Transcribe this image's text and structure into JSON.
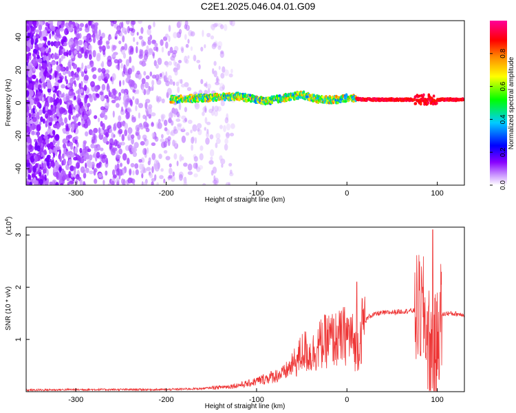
{
  "figure": {
    "title": "C2E1.2025.046.04.01.G09"
  },
  "chart_data": [
    {
      "type": "heatmap",
      "xlabel": "Height of straight line (km)",
      "ylabel": "Frequency (Hz)",
      "xlim": [
        -355,
        130
      ],
      "ylim": [
        -50,
        50
      ],
      "x_ticks": [
        -300,
        -200,
        -100,
        0,
        100
      ],
      "x_tick_labels": [
        "-300",
        "-200",
        "-100",
        "0",
        "100"
      ],
      "y_ticks": [
        -40,
        -20,
        0,
        20,
        40
      ],
      "y_tick_labels": [
        "-40",
        "-20",
        "0",
        "20",
        "40"
      ],
      "colorbar": {
        "label": "Normalized spectral amplitude",
        "range": [
          0,
          1
        ],
        "ticks": [
          0.0,
          0.2,
          0.4,
          0.6,
          0.8
        ],
        "tick_labels": [
          "0.0",
          "0.2",
          "0.4",
          "0.6",
          "0.8"
        ],
        "colors": [
          "#ffffff",
          "#cc99ff",
          "#8800ff",
          "#0000ff",
          "#00ccff",
          "#00ff00",
          "#ffff00",
          "#ff8800",
          "#ff0000",
          "#ff0099"
        ]
      },
      "ridge": {
        "description_points_x": [
          -195,
          -160,
          -120,
          -90,
          -70,
          -50,
          -30,
          -10,
          0,
          20,
          60,
          80,
          95,
          130
        ],
        "frequency_hz": [
          2,
          3,
          4,
          1,
          3,
          5,
          2,
          2,
          3,
          2,
          2,
          2,
          2,
          2
        ]
      },
      "grid": false
    },
    {
      "type": "line",
      "xlabel": "Height of straight line (km)",
      "ylabel": "SNR (10 * v/v)",
      "y_scale_label_base": "(x10",
      "y_scale_label_exp": "4",
      "y_scale_label_end": ")",
      "xlim": [
        -355,
        130
      ],
      "ylim": [
        0,
        3.15
      ],
      "x_ticks": [
        -300,
        -200,
        -100,
        0,
        100
      ],
      "x_tick_labels": [
        "-300",
        "-200",
        "-100",
        "0",
        "100"
      ],
      "y_ticks": [
        1,
        2,
        3
      ],
      "y_tick_labels": [
        "1",
        "2",
        "3"
      ],
      "series": [
        {
          "color": "#ee3333",
          "x": [
            -355,
            -300,
            -250,
            -200,
            -160,
            -130,
            -110,
            -90,
            -70,
            -55,
            -48,
            -40,
            -30,
            -20,
            -10,
            0,
            5,
            10,
            13,
            18,
            25,
            35,
            50,
            70,
            80,
            85,
            90,
            95,
            100,
            103,
            110,
            130
          ],
          "y": [
            0.03,
            0.04,
            0.04,
            0.04,
            0.06,
            0.1,
            0.15,
            0.25,
            0.35,
            0.6,
            0.8,
            0.7,
            0.9,
            1.0,
            1.0,
            1.1,
            1.05,
            0.8,
            0.9,
            1.3,
            1.45,
            1.5,
            1.52,
            1.55,
            1.55,
            1.5,
            1.0,
            0.6,
            0.9,
            1.45,
            1.5,
            1.48
          ]
        }
      ],
      "grid": false
    }
  ]
}
